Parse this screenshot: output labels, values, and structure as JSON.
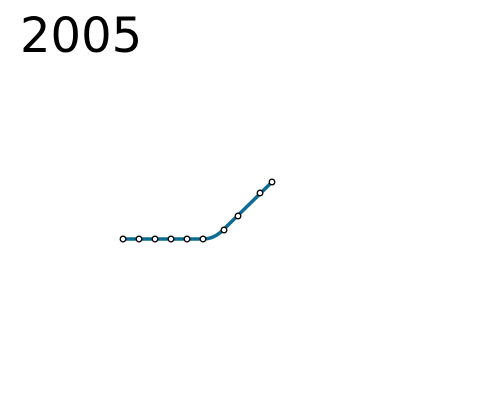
{
  "title": "2005",
  "map": {
    "line_color": "#0f6b93",
    "station_fill": "#ffffff",
    "station_stroke": "#000000",
    "station_count": 10
  }
}
